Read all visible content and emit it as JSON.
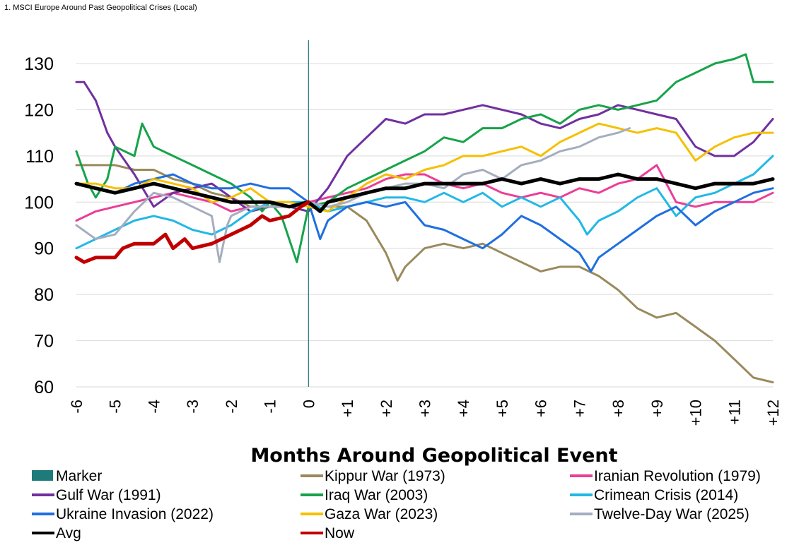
{
  "chart_data": {
    "type": "line",
    "title": "1. MSCI Europe Around Past Geopolitical Crises (Local)",
    "xlabel": "Months Around Geopolitical Event",
    "ylabel": "",
    "ylim": [
      60,
      130
    ],
    "yticks": [
      "60",
      "70",
      "80",
      "90",
      "100",
      "110",
      "120",
      "130"
    ],
    "xlim": [
      -6,
      12
    ],
    "xticks": [
      {
        "value": -6,
        "label": "-6"
      },
      {
        "value": -5,
        "label": "-5"
      },
      {
        "value": -4,
        "label": "-4"
      },
      {
        "value": -3,
        "label": "-3"
      },
      {
        "value": -2,
        "label": "-2"
      },
      {
        "value": -1,
        "label": "-1"
      },
      {
        "value": 0,
        "label": "0"
      },
      {
        "value": 1,
        "label": "+1"
      },
      {
        "value": 2,
        "label": "+2"
      },
      {
        "value": 3,
        "label": "+3"
      },
      {
        "value": 4,
        "label": "+4"
      },
      {
        "value": 5,
        "label": "+5"
      },
      {
        "value": 6,
        "label": "+6"
      },
      {
        "value": 7,
        "label": "+7"
      },
      {
        "value": 8,
        "label": "+8"
      },
      {
        "value": 9,
        "label": "+9"
      },
      {
        "value": 10,
        "label": "+10"
      },
      {
        "value": 11,
        "label": "+11"
      },
      {
        "value": 12,
        "label": "+12"
      }
    ],
    "marker": {
      "x": 0,
      "color": "#1f7a7a"
    },
    "legend_items": [
      {
        "name": "Marker",
        "color": "#1f7a7a",
        "kind": "box"
      },
      {
        "name": "Kippur War (1973)",
        "color": "#9a8a5c",
        "kind": "line"
      },
      {
        "name": "Iranian Revolution (1979)",
        "color": "#ec3d97",
        "kind": "line"
      },
      {
        "name": "Gulf War (1991)",
        "color": "#7030a0",
        "kind": "line"
      },
      {
        "name": "Iraq War (2003)",
        "color": "#16a34a",
        "kind": "line"
      },
      {
        "name": "Crimean Crisis (2014)",
        "color": "#22b8e6",
        "kind": "line"
      },
      {
        "name": "Ukraine Invasion (2022)",
        "color": "#1f6fe0",
        "kind": "line"
      },
      {
        "name": "Gaza War (2023)",
        "color": "#f5c000",
        "kind": "line"
      },
      {
        "name": "Twelve-Day War (2025)",
        "color": "#a5adbf",
        "kind": "line"
      },
      {
        "name": "Avg",
        "color": "#000000",
        "kind": "line"
      },
      {
        "name": "Now",
        "color": "#c00000",
        "kind": "line"
      }
    ],
    "series": [
      {
        "name": "Kippur War (1973)",
        "color": "#9a8a5c",
        "width": 3,
        "x": [
          -6,
          -5.5,
          -5,
          -4.5,
          -4,
          -3.5,
          -3,
          -2.5,
          -2,
          -1.5,
          -1,
          -0.5,
          0,
          0.5,
          1,
          1.5,
          2,
          2.3,
          2.5,
          3,
          3.5,
          4,
          4.5,
          5,
          5.5,
          6,
          6.5,
          7,
          7.5,
          8,
          8.5,
          9,
          9.5,
          10,
          10.5,
          11,
          11.5,
          12
        ],
        "y": [
          108,
          108,
          108,
          107,
          107,
          105,
          104,
          102,
          101,
          99,
          99,
          99,
          100,
          99,
          99,
          96,
          89,
          83,
          86,
          90,
          91,
          90,
          91,
          89,
          87,
          85,
          86,
          86,
          84,
          81,
          77,
          75,
          76,
          73,
          70,
          66,
          62,
          61
        ]
      },
      {
        "name": "Iranian Revolution (1979)",
        "color": "#ec3d97",
        "width": 3,
        "x": [
          -6,
          -5.5,
          -5,
          -4.5,
          -4,
          -3.5,
          -3,
          -2.5,
          -2,
          -1.5,
          -1,
          -0.5,
          0,
          0.5,
          1,
          1.5,
          2,
          2.5,
          3,
          3.5,
          4,
          4.5,
          5,
          5.5,
          6,
          6.5,
          7,
          7.5,
          8,
          8.5,
          9,
          9.5,
          10,
          10.5,
          11,
          11.5,
          12
        ],
        "y": [
          96,
          98,
          99,
          100,
          101,
          102,
          101,
          100,
          98,
          99,
          99,
          99,
          100,
          101,
          102,
          103,
          105,
          106,
          106,
          104,
          103,
          104,
          102,
          101,
          102,
          101,
          103,
          102,
          104,
          105,
          108,
          100,
          99,
          100,
          100,
          100,
          102
        ]
      },
      {
        "name": "Gulf War (1991)",
        "color": "#7030a0",
        "width": 3,
        "x": [
          -6,
          -5.8,
          -5.5,
          -5.2,
          -5,
          -4.5,
          -4,
          -3.5,
          -3,
          -2.5,
          -2,
          -1.5,
          -1,
          -0.5,
          0,
          0.5,
          1,
          1.5,
          2,
          2.5,
          3,
          3.5,
          4,
          4.5,
          5,
          5.5,
          6,
          6.5,
          7,
          7.5,
          8,
          8.5,
          9,
          9.5,
          10,
          10.5,
          11,
          11.5,
          12
        ],
        "y": [
          126,
          126,
          122,
          115,
          112,
          106,
          99,
          102,
          103,
          104,
          101,
          98,
          99,
          99,
          98,
          103,
          110,
          114,
          118,
          117,
          119,
          119,
          120,
          121,
          120,
          119,
          117,
          116,
          118,
          119,
          121,
          120,
          119,
          118,
          112,
          110,
          110,
          113,
          118
        ]
      },
      {
        "name": "Iraq War (2003)",
        "color": "#16a34a",
        "width": 3,
        "x": [
          -6,
          -5.7,
          -5.5,
          -5.2,
          -5,
          -4.5,
          -4.3,
          -4,
          -3.5,
          -3,
          -2.5,
          -2,
          -1.5,
          -1.2,
          -1,
          -0.7,
          -0.3,
          0,
          0.5,
          1,
          1.5,
          2,
          2.5,
          3,
          3.5,
          4,
          4.5,
          5,
          5.5,
          6,
          6.5,
          7,
          7.5,
          8,
          8.5,
          9,
          9.5,
          10,
          10.5,
          11,
          11.3,
          11.5,
          11.7,
          12
        ],
        "y": [
          111,
          104,
          101,
          105,
          112,
          110,
          117,
          112,
          110,
          108,
          106,
          104,
          101,
          98,
          100,
          97,
          87,
          99,
          100,
          103,
          105,
          107,
          109,
          111,
          114,
          113,
          116,
          116,
          118,
          119,
          117,
          120,
          121,
          120,
          121,
          122,
          126,
          128,
          130,
          131,
          132,
          126,
          126,
          126
        ]
      },
      {
        "name": "Crimean Crisis (2014)",
        "color": "#22b8e6",
        "width": 3,
        "x": [
          -6,
          -5.5,
          -5,
          -4.5,
          -4,
          -3.5,
          -3,
          -2.5,
          -2,
          -1.5,
          -1,
          -0.5,
          0,
          0.5,
          1,
          1.5,
          2,
          2.5,
          3,
          3.5,
          4,
          4.5,
          5,
          5.5,
          6,
          6.5,
          7,
          7.2,
          7.5,
          8,
          8.5,
          9,
          9.5,
          10,
          10.5,
          11,
          11.5,
          12
        ],
        "y": [
          90,
          92,
          94,
          96,
          97,
          96,
          94,
          93,
          95,
          98,
          100,
          100,
          100,
          98,
          99,
          100,
          101,
          101,
          100,
          102,
          100,
          102,
          99,
          101,
          99,
          101,
          96,
          93,
          96,
          98,
          101,
          103,
          97,
          101,
          102,
          104,
          106,
          110
        ]
      },
      {
        "name": "Ukraine Invasion (2022)",
        "color": "#1f6fe0",
        "width": 3,
        "x": [
          -6,
          -5.5,
          -5,
          -4.5,
          -4,
          -3.5,
          -3,
          -2.5,
          -2,
          -1.5,
          -1,
          -0.5,
          0,
          0.3,
          0.5,
          1,
          1.5,
          2,
          2.5,
          3,
          3.5,
          4,
          4.5,
          5,
          5.5,
          6,
          6.5,
          7,
          7.3,
          7.5,
          8,
          8.5,
          9,
          9.5,
          10,
          10.5,
          11,
          11.5,
          12
        ],
        "y": [
          104,
          103,
          102,
          104,
          105,
          106,
          104,
          103,
          103,
          104,
          103,
          103,
          100,
          92,
          96,
          99,
          100,
          99,
          100,
          95,
          94,
          92,
          90,
          93,
          97,
          95,
          92,
          89,
          85,
          88,
          91,
          94,
          97,
          99,
          95,
          98,
          100,
          102,
          103
        ]
      },
      {
        "name": "Gaza War (2023)",
        "color": "#f5c000",
        "width": 3,
        "x": [
          -6,
          -5.5,
          -5,
          -4.5,
          -4,
          -3.5,
          -3,
          -2.5,
          -2,
          -1.5,
          -1,
          -0.5,
          0,
          0.5,
          1,
          1.5,
          2,
          2.5,
          3,
          3.5,
          4,
          4.5,
          5,
          5.5,
          6,
          6.5,
          7,
          7.5,
          8,
          8.5,
          9,
          9.5,
          10,
          10.5,
          11,
          11.5,
          12
        ],
        "y": [
          104,
          104,
          103,
          103,
          105,
          104,
          103,
          100,
          101,
          103,
          100,
          100,
          99,
          98,
          101,
          104,
          106,
          105,
          107,
          108,
          110,
          110,
          111,
          112,
          110,
          113,
          115,
          117,
          116,
          115,
          116,
          115,
          109,
          112,
          114,
          115,
          115
        ]
      },
      {
        "name": "Twelve-Day War (2025)",
        "color": "#a5adbf",
        "width": 3,
        "x": [
          -6,
          -5.5,
          -5,
          -4.5,
          -4,
          -3.5,
          -3,
          -2.5,
          -2.3,
          -2.1,
          -2,
          -1.5,
          -1,
          -0.5,
          0,
          0.5,
          1,
          1.5,
          2,
          2.5,
          3,
          3.5,
          4,
          4.5,
          5,
          5.5,
          6,
          6.5,
          7,
          7.5,
          8,
          8.3
        ],
        "y": [
          95,
          92,
          93,
          98,
          102,
          101,
          99,
          97,
          87,
          95,
          97,
          99,
          99,
          99,
          100,
          99,
          100,
          102,
          103,
          104,
          104,
          103,
          106,
          107,
          105,
          108,
          109,
          111,
          112,
          114,
          115,
          116
        ]
      },
      {
        "name": "Avg",
        "color": "#000000",
        "width": 5,
        "x": [
          -6,
          -5.5,
          -5,
          -4.5,
          -4,
          -3.5,
          -3,
          -2.5,
          -2,
          -1.5,
          -1,
          -0.5,
          0,
          0.3,
          0.5,
          1,
          1.5,
          2,
          2.5,
          3,
          3.5,
          4,
          4.5,
          5,
          5.5,
          6,
          6.5,
          7,
          7.5,
          8,
          8.5,
          9,
          9.5,
          10,
          10.5,
          11,
          11.5,
          12
        ],
        "y": [
          104,
          103,
          102,
          103,
          104,
          103,
          102,
          101,
          100,
          100,
          100,
          99,
          100,
          98,
          100,
          101,
          102,
          103,
          103,
          104,
          104,
          104,
          104,
          105,
          104,
          105,
          104,
          105,
          105,
          106,
          105,
          105,
          104,
          103,
          104,
          104,
          104,
          105
        ]
      },
      {
        "name": "Now",
        "color": "#c00000",
        "width": 5,
        "x": [
          -6,
          -5.8,
          -5.5,
          -5,
          -4.8,
          -4.5,
          -4,
          -3.7,
          -3.5,
          -3.2,
          -3,
          -2.5,
          -2,
          -1.5,
          -1.2,
          -1,
          -0.5,
          -0.2,
          0
        ],
        "y": [
          88,
          87,
          88,
          88,
          90,
          91,
          91,
          93,
          90,
          92,
          90,
          91,
          93,
          95,
          97,
          96,
          97,
          99,
          100
        ]
      }
    ]
  }
}
